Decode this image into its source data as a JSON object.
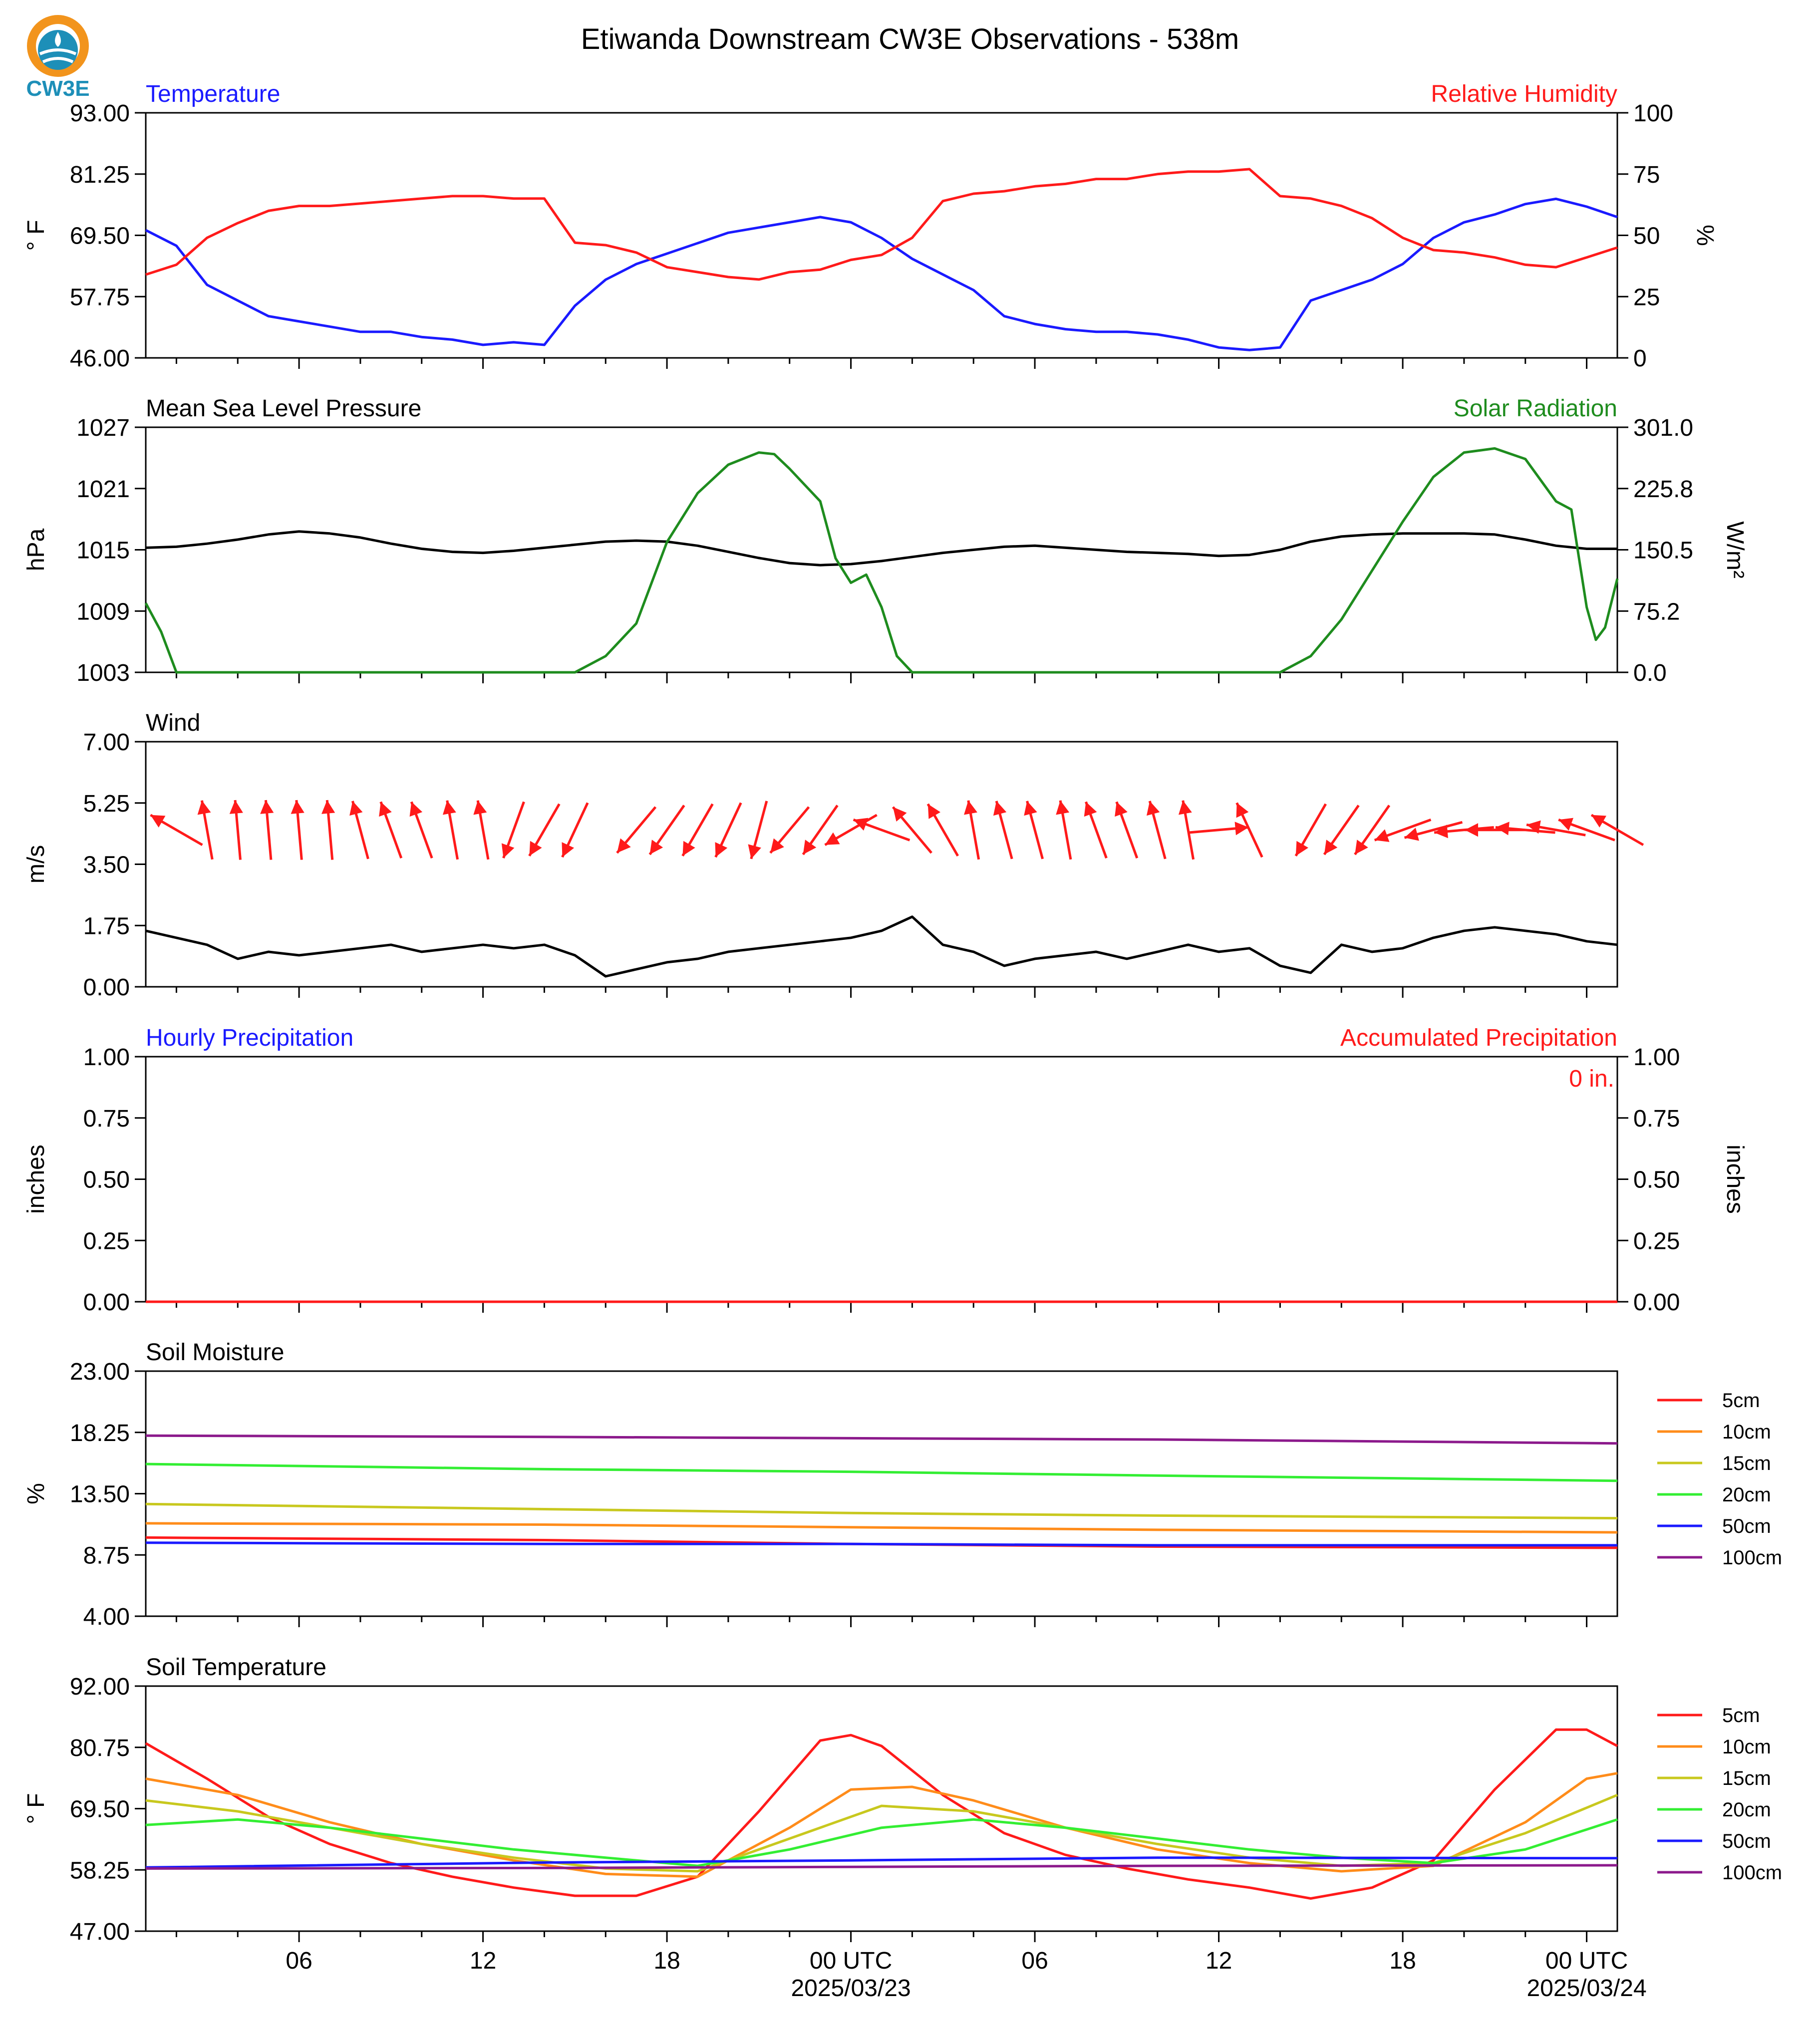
{
  "title": "Etiwanda Downstream CW3E Observations - 538m",
  "logo_text": "CW3E",
  "colors": {
    "red": "#ff1a1a",
    "blue": "#1a1aff",
    "green": "#1e8c1e",
    "black": "#000000",
    "orange": "#ff8c1a",
    "olive": "#c8c81e",
    "lime": "#33ee33",
    "purple": "#8c1a8c"
  },
  "x_axis": {
    "range_hours": [
      -23,
      25
    ],
    "tick_labels": [
      "06",
      "12",
      "18",
      "00 UTC",
      "06",
      "12",
      "18",
      "00 UTC"
    ],
    "tick_hours": [
      -18,
      -12,
      -6,
      0,
      6,
      12,
      18,
      24
    ],
    "date_labels": [
      "2025/03/23",
      "2025/03/24"
    ],
    "date_hours": [
      0,
      24
    ]
  },
  "chart_data": [
    {
      "type": "line",
      "panel": "temperature_rh",
      "left_title": "Temperature",
      "right_title": "Relative Humidity",
      "ylabel": "° F",
      "ylabel_right": "%",
      "ylim": [
        46,
        93
      ],
      "ylim_right": [
        0,
        100
      ],
      "yticks": [
        "93.00",
        "81.25",
        "69.50",
        "57.75",
        "46.00"
      ],
      "yticks_right": [
        "100",
        "75",
        "50",
        "25",
        "0"
      ],
      "series": [
        {
          "color": "blue",
          "axis": "left",
          "x": [
            -23,
            -22,
            -21,
            -20,
            -19,
            -18,
            -17,
            -16,
            -15,
            -14,
            -13,
            -12,
            -11,
            -10,
            -9,
            -8,
            -7,
            -6,
            -5,
            -4,
            -3,
            -2,
            -1,
            0,
            1,
            2,
            3,
            4,
            5,
            6,
            7,
            8,
            9,
            10,
            11,
            12,
            13,
            14,
            15,
            16,
            17,
            18,
            19,
            20,
            21,
            22,
            23,
            24,
            25
          ],
          "y": [
            70.5,
            67.5,
            60,
            57,
            54,
            53,
            52,
            51,
            51,
            50,
            49.5,
            48.5,
            49,
            48.5,
            56,
            61,
            64,
            66,
            68,
            70,
            71,
            72,
            73,
            72,
            69,
            65,
            62,
            59,
            54,
            52.5,
            51.5,
            51,
            51,
            50.5,
            49.5,
            48,
            47.5,
            48,
            57,
            59,
            61,
            64,
            69,
            72,
            73.5,
            75.5,
            76.5,
            75,
            73
          ]
        },
        {
          "color": "red",
          "axis": "right",
          "x": [
            -23,
            -22,
            -21,
            -20,
            -19,
            -18,
            -17,
            -16,
            -15,
            -14,
            -13,
            -12,
            -11,
            -10,
            -9,
            -8,
            -7,
            -6,
            -5,
            -4,
            -3,
            -2,
            -1,
            0,
            1,
            2,
            3,
            4,
            5,
            6,
            7,
            8,
            9,
            10,
            11,
            12,
            13,
            14,
            15,
            16,
            17,
            18,
            19,
            20,
            21,
            22,
            23,
            24,
            25
          ],
          "y": [
            34,
            38,
            49,
            55,
            60,
            62,
            62,
            63,
            64,
            65,
            66,
            66,
            65,
            65,
            47,
            46,
            43,
            37,
            35,
            33,
            32,
            35,
            36,
            40,
            42,
            49,
            64,
            67,
            68,
            70,
            71,
            73,
            73,
            75,
            76,
            76,
            77,
            66,
            65,
            62,
            57,
            49,
            44,
            43,
            41,
            38,
            37,
            41,
            45
          ]
        }
      ]
    },
    {
      "type": "line",
      "panel": "pressure_solar",
      "left_title": "Mean Sea Level Pressure",
      "right_title": "Solar Radiation",
      "ylabel": "hPa",
      "ylabel_right": "W/m²",
      "ylim": [
        1003,
        1027
      ],
      "ylim_right": [
        0,
        301
      ],
      "yticks": [
        "1027",
        "1021",
        "1015",
        "1009",
        "1003"
      ],
      "yticks_right": [
        "301.0",
        "225.8",
        "150.5",
        "75.2",
        "0.0"
      ],
      "series": [
        {
          "color": "black",
          "axis": "left",
          "x": [
            -23,
            -22,
            -21,
            -20,
            -19,
            -18,
            -17,
            -16,
            -15,
            -14,
            -13,
            -12,
            -11,
            -10,
            -9,
            -8,
            -7,
            -6,
            -5,
            -4,
            -3,
            -2,
            -1,
            0,
            1,
            2,
            3,
            4,
            5,
            6,
            7,
            8,
            9,
            10,
            11,
            12,
            13,
            14,
            15,
            16,
            17,
            18,
            19,
            20,
            21,
            22,
            23,
            24,
            25
          ],
          "y": [
            1015.2,
            1015.3,
            1015.6,
            1016,
            1016.5,
            1016.8,
            1016.6,
            1016.2,
            1015.6,
            1015.1,
            1014.8,
            1014.7,
            1014.9,
            1015.2,
            1015.5,
            1015.8,
            1015.9,
            1015.8,
            1015.4,
            1014.8,
            1014.2,
            1013.7,
            1013.5,
            1013.6,
            1013.9,
            1014.3,
            1014.7,
            1015,
            1015.3,
            1015.4,
            1015.2,
            1015,
            1014.8,
            1014.7,
            1014.6,
            1014.4,
            1014.5,
            1015,
            1015.8,
            1016.3,
            1016.5,
            1016.6,
            1016.6,
            1016.6,
            1016.5,
            1016,
            1015.4,
            1015.1,
            1015.1
          ]
        },
        {
          "color": "green",
          "axis": "right",
          "x": [
            -23,
            -22.5,
            -22,
            -21.5,
            -18,
            -15,
            -13,
            -12,
            -11,
            -10,
            -9,
            -8,
            -7,
            -6,
            -5,
            -4,
            -3,
            -2.5,
            -2,
            -1.5,
            -1,
            -0.5,
            0,
            0.5,
            1,
            1.5,
            2,
            2.5,
            6,
            10,
            13,
            14,
            15,
            16,
            17,
            18,
            19,
            20,
            21,
            22,
            23,
            23.5,
            24,
            24.3,
            24.6,
            25
          ],
          "y": [
            85,
            50,
            0,
            0,
            0,
            0,
            0,
            0,
            0,
            0,
            0,
            20,
            60,
            160,
            220,
            255,
            270,
            268,
            250,
            230,
            210,
            140,
            110,
            120,
            80,
            20,
            0,
            0,
            0,
            0,
            0,
            0,
            20,
            65,
            125,
            185,
            240,
            270,
            275,
            262,
            210,
            200,
            80,
            40,
            55,
            115
          ]
        }
      ]
    },
    {
      "type": "line",
      "panel": "wind",
      "left_title": "Wind",
      "ylabel": "m/s",
      "ylim": [
        0,
        7
      ],
      "yticks": [
        "7.00",
        "5.25",
        "3.50",
        "1.75",
        "0.00"
      ],
      "series": [
        {
          "color": "black",
          "axis": "left",
          "x": [
            -23,
            -22,
            -21,
            -20,
            -19,
            -18,
            -17,
            -16,
            -15,
            -14,
            -13,
            -12,
            -11,
            -10,
            -9,
            -8,
            -7,
            -6,
            -5,
            -4,
            -3,
            -2,
            -1,
            0,
            1,
            2,
            3,
            4,
            5,
            6,
            7,
            8,
            9,
            10,
            11,
            12,
            13,
            14,
            15,
            16,
            17,
            18,
            19,
            20,
            21,
            22,
            23,
            24,
            25
          ],
          "y": [
            1.6,
            1.4,
            1.2,
            0.8,
            1.0,
            0.9,
            1.0,
            1.1,
            1.2,
            1.0,
            1.1,
            1.2,
            1.1,
            1.2,
            0.9,
            0.3,
            0.5,
            0.7,
            0.8,
            1.0,
            1.1,
            1.2,
            1.3,
            1.4,
            1.6,
            2.0,
            1.2,
            1.0,
            0.6,
            0.8,
            0.9,
            1.0,
            0.8,
            1.0,
            1.2,
            1.0,
            1.1,
            0.6,
            0.4,
            1.2,
            1.0,
            1.1,
            1.4,
            1.6,
            1.7,
            1.6,
            1.5,
            1.3,
            1.2
          ]
        },
        {
          "color": "red",
          "axis": "none",
          "kind": "wind_barbs_direction_deg",
          "x": [
            -22,
            -21,
            -20,
            -19,
            -18,
            -17,
            -16,
            -15,
            -14,
            -13,
            -12,
            -11,
            -10,
            -9,
            -7,
            -6,
            -5,
            -4,
            -3,
            -2,
            -1,
            0,
            1,
            2,
            3,
            4,
            5,
            6,
            7,
            8,
            9,
            10,
            11,
            12,
            13,
            15,
            16,
            17,
            18,
            19,
            20,
            21,
            22,
            23,
            24,
            25
          ],
          "y": [
            300,
            350,
            355,
            355,
            355,
            355,
            345,
            340,
            340,
            350,
            350,
            200,
            210,
            205,
            220,
            215,
            210,
            205,
            195,
            220,
            215,
            240,
            290,
            320,
            330,
            350,
            345,
            345,
            350,
            340,
            340,
            345,
            350,
            85,
            335,
            210,
            215,
            215,
            250,
            255,
            265,
            270,
            275,
            280,
            290,
            300
          ]
        }
      ]
    },
    {
      "type": "line",
      "panel": "precipitation",
      "left_title": "Hourly Precipitation",
      "right_title": "Accumulated Precipitation",
      "annotation": "0 in.",
      "ylabel": "inches",
      "ylabel_right": "inches",
      "ylim": [
        0,
        1
      ],
      "ylim_right": [
        0,
        1
      ],
      "yticks": [
        "1.00",
        "0.75",
        "0.50",
        "0.25",
        "0.00"
      ],
      "yticks_right": [
        "1.00",
        "0.75",
        "0.50",
        "0.25",
        "0.00"
      ],
      "series": [
        {
          "color": "blue",
          "axis": "left",
          "x": [
            -23,
            25
          ],
          "y": [
            0,
            0
          ]
        },
        {
          "color": "red",
          "axis": "right",
          "x": [
            -23,
            25
          ],
          "y": [
            0,
            0
          ]
        }
      ]
    },
    {
      "type": "line",
      "panel": "soil_moisture",
      "left_title": "Soil Moisture",
      "ylabel": "%",
      "ylim": [
        4,
        23
      ],
      "yticks": [
        "23.00",
        "18.25",
        "13.50",
        "8.75",
        "4.00"
      ],
      "series": [
        {
          "name": "5cm",
          "color": "red",
          "x": [
            -23,
            -10,
            0,
            10,
            25
          ],
          "y": [
            10.1,
            9.9,
            9.6,
            9.4,
            9.3
          ]
        },
        {
          "name": "10cm",
          "color": "orange",
          "x": [
            -23,
            -10,
            0,
            10,
            25
          ],
          "y": [
            11.2,
            11.1,
            10.9,
            10.7,
            10.5
          ]
        },
        {
          "name": "15cm",
          "color": "olive",
          "x": [
            -23,
            -10,
            0,
            10,
            25
          ],
          "y": [
            12.7,
            12.3,
            12.0,
            11.8,
            11.6
          ]
        },
        {
          "name": "20cm",
          "color": "lime",
          "x": [
            -23,
            -10,
            0,
            10,
            25
          ],
          "y": [
            15.8,
            15.4,
            15.2,
            14.9,
            14.5
          ]
        },
        {
          "name": "50cm",
          "color": "blue",
          "x": [
            -23,
            -10,
            0,
            10,
            25
          ],
          "y": [
            9.7,
            9.6,
            9.6,
            9.5,
            9.5
          ]
        },
        {
          "name": "100cm",
          "color": "purple",
          "x": [
            -23,
            -10,
            0,
            10,
            25
          ],
          "y": [
            18.0,
            17.9,
            17.8,
            17.7,
            17.4
          ]
        }
      ]
    },
    {
      "type": "line",
      "panel": "soil_temperature",
      "left_title": "Soil Temperature",
      "ylabel": "° F",
      "ylim": [
        47,
        92
      ],
      "yticks": [
        "92.00",
        "80.75",
        "69.50",
        "58.25",
        "47.00"
      ],
      "series": [
        {
          "name": "5cm",
          "color": "red",
          "x": [
            -23,
            -21,
            -19,
            -17,
            -15,
            -13,
            -11,
            -9,
            -7,
            -5,
            -3,
            -1,
            0,
            1,
            3,
            5,
            7,
            9,
            11,
            13,
            15,
            17,
            19,
            21,
            23,
            24,
            25
          ],
          "y": [
            81.5,
            75,
            68,
            63,
            59.5,
            57,
            55,
            53.5,
            53.5,
            57,
            69,
            82,
            83,
            81,
            72,
            65,
            61,
            58.5,
            56.5,
            55,
            53,
            55,
            60,
            73,
            84,
            84,
            81
          ]
        },
        {
          "name": "10cm",
          "color": "orange",
          "x": [
            -23,
            -20,
            -17,
            -14,
            -11,
            -8,
            -5,
            -2,
            0,
            2,
            4,
            7,
            10,
            13,
            16,
            19,
            22,
            24,
            25
          ],
          "y": [
            75,
            72,
            67,
            63,
            60,
            57.5,
            57,
            66,
            73,
            73.5,
            71,
            66,
            62,
            59.5,
            58,
            59,
            67,
            75,
            76
          ]
        },
        {
          "name": "15cm",
          "color": "olive",
          "x": [
            -23,
            -20,
            -17,
            -14,
            -11,
            -8,
            -5,
            -2,
            1,
            4,
            7,
            10,
            13,
            16,
            19,
            22,
            25
          ],
          "y": [
            71,
            69,
            66,
            63,
            60.5,
            58.5,
            58,
            64,
            70,
            69,
            66,
            63,
            60.5,
            59,
            59.5,
            65,
            72
          ]
        },
        {
          "name": "20cm",
          "color": "lime",
          "x": [
            -23,
            -20,
            -17,
            -14,
            -11,
            -8,
            -5,
            -2,
            1,
            4,
            7,
            10,
            13,
            16,
            19,
            22,
            25
          ],
          "y": [
            66.5,
            67.5,
            66,
            64,
            62,
            60.5,
            59,
            62,
            66,
            67.5,
            66,
            64,
            62,
            60.5,
            59.5,
            62,
            67.5
          ]
        },
        {
          "name": "50cm",
          "color": "blue",
          "x": [
            -23,
            -10,
            0,
            10,
            25
          ],
          "y": [
            58.7,
            59.6,
            60,
            60.5,
            60.4
          ]
        },
        {
          "name": "100cm",
          "color": "purple",
          "x": [
            -23,
            -10,
            0,
            10,
            25
          ],
          "y": [
            58.5,
            58.6,
            58.8,
            59,
            59.1
          ]
        }
      ]
    }
  ]
}
